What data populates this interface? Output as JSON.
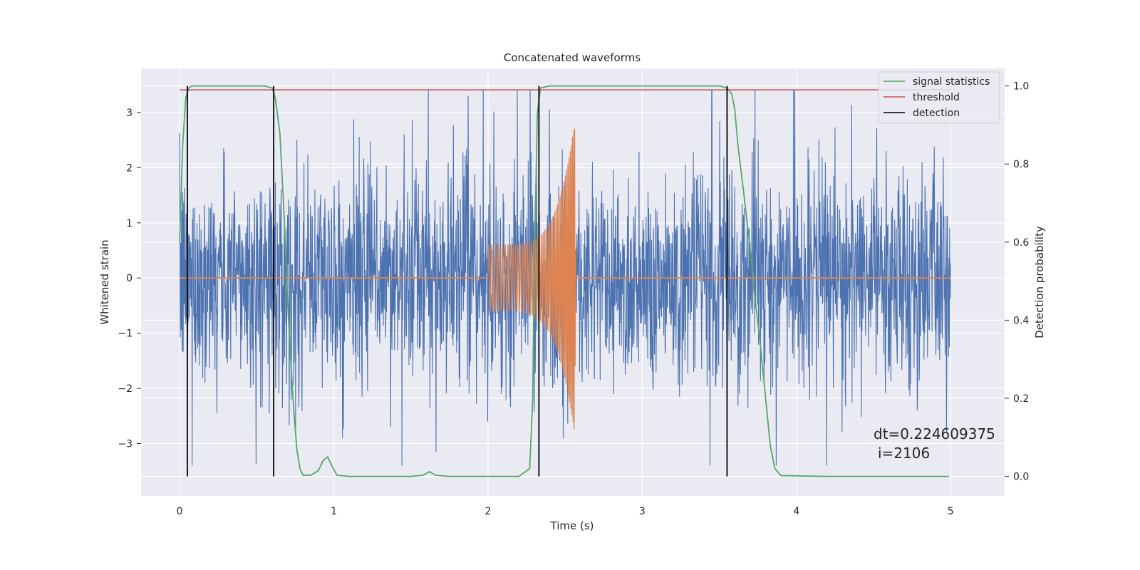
{
  "chart_data": {
    "type": "line",
    "title": "Concatenated waveforms",
    "xlabel": "Time (s)",
    "ylabel": "Whitened strain",
    "y2label": "Detection probability",
    "xlim": [
      -0.25,
      5.35
    ],
    "ylim": [
      -3.95,
      3.8
    ],
    "y2lim": [
      -0.05,
      1.045
    ],
    "xticks": [
      0,
      1,
      2,
      3,
      4,
      5
    ],
    "yticks": [
      -3,
      -2,
      -1,
      0,
      1,
      2,
      3
    ],
    "y2ticks": [
      "0.0",
      "0.2",
      "0.4",
      "0.6",
      "0.8",
      "1.0"
    ],
    "grid": true,
    "legend_position": "top-right",
    "colors": {
      "noise": "#4c72b0",
      "injection": "#dd8452",
      "statistics": "#55a868",
      "threshold": "#c44e52",
      "detection": "#000000",
      "axes_bg": "#eaeaf2",
      "grid": "#ffffff"
    },
    "series": [
      {
        "name": "signal statistics",
        "axis": "right",
        "x": [
          0,
          0.02,
          0.04,
          0.06,
          0.08,
          0.1,
          0.3,
          0.55,
          0.6,
          0.62,
          0.65,
          0.68,
          0.7,
          0.72,
          0.74,
          0.76,
          0.78,
          0.8,
          0.85,
          0.9,
          0.93,
          0.96,
          0.99,
          1.02,
          1.1,
          1.3,
          1.5,
          1.58,
          1.62,
          1.66,
          1.75,
          2.0,
          2.2,
          2.27,
          2.29,
          2.3,
          2.32,
          2.34,
          2.4,
          2.8,
          3.2,
          3.5,
          3.55,
          3.58,
          3.6,
          3.62,
          3.66,
          3.7,
          3.73,
          3.76,
          3.8,
          3.83,
          3.86,
          3.9,
          4.2,
          4.6,
          4.99
        ],
        "y": [
          0.6,
          0.85,
          0.97,
          0.995,
          1.0,
          1.0,
          1.0,
          1.0,
          0.995,
          0.97,
          0.88,
          0.65,
          0.45,
          0.3,
          0.17,
          0.07,
          0.02,
          0.003,
          0.003,
          0.015,
          0.04,
          0.05,
          0.025,
          0.003,
          0.0,
          0.0,
          0.0,
          0.003,
          0.012,
          0.003,
          0.0,
          0.0,
          0.0,
          0.02,
          0.2,
          0.55,
          0.93,
          0.995,
          1.0,
          1.0,
          1.0,
          1.0,
          0.995,
          0.98,
          0.94,
          0.85,
          0.72,
          0.58,
          0.46,
          0.36,
          0.2,
          0.08,
          0.02,
          0.002,
          0.0,
          0.0,
          0.0
        ]
      },
      {
        "name": "threshold",
        "axis": "right",
        "x": [
          0,
          5
        ],
        "y": [
          0.99,
          0.99
        ]
      },
      {
        "name": "detection",
        "axis": "right",
        "type": "vlines",
        "x": [
          0.05,
          0.61,
          2.33,
          3.55
        ],
        "ymin": 0.0,
        "ymax": 1.0
      },
      {
        "name": "",
        "axis": "left",
        "type": "noise",
        "x_range": [
          0,
          5
        ],
        "envelope": 3.4
      },
      {
        "name": "",
        "axis": "left",
        "type": "chirp",
        "x_range": [
          2.0,
          2.57
        ],
        "amplitude_start": 0.6,
        "amplitude_peak": 3.0
      }
    ],
    "annotations": [
      {
        "text": "dt=0.224609375",
        "x": 4.5,
        "y": -2.8
      },
      {
        "text": "i=2106",
        "x": 4.53,
        "y": -3.15
      }
    ]
  }
}
